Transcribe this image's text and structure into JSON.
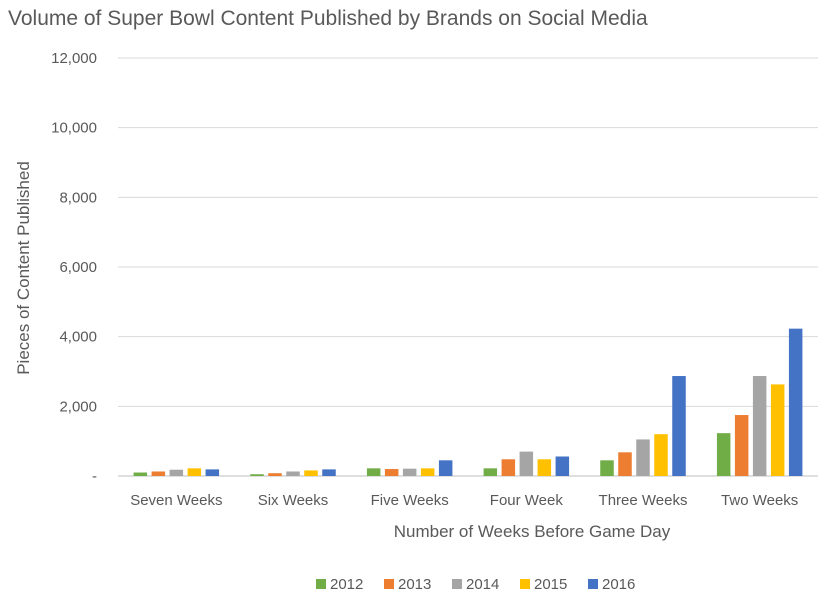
{
  "chart_data": {
    "type": "bar",
    "title": "Volume of Super Bowl Content Published by Brands on Social Media",
    "xlabel": "Number of Weeks Before Game Day",
    "ylabel": "Pieces of Content Published",
    "categories": [
      "Seven Weeks",
      "Six Weeks",
      "Five Weeks",
      "Four Week",
      "Three Weeks",
      "Two Weeks"
    ],
    "ylim": [
      0,
      12000
    ],
    "yticks": [
      0,
      2000,
      4000,
      6000,
      8000,
      10000,
      12000
    ],
    "ytick_labels": [
      "-",
      "2,000",
      "4,000",
      "6,000",
      "8,000",
      "10,000",
      "12,000"
    ],
    "grid": true,
    "legend_position": "bottom",
    "series": [
      {
        "name": "2012",
        "color": "#70AD47",
        "values": [
          100,
          50,
          220,
          220,
          450,
          1230
        ]
      },
      {
        "name": "2013",
        "color": "#ED7D31",
        "values": [
          130,
          80,
          200,
          480,
          680,
          1750
        ]
      },
      {
        "name": "2014",
        "color": "#A5A5A5",
        "values": [
          180,
          130,
          210,
          700,
          1050,
          2870
        ]
      },
      {
        "name": "2015",
        "color": "#FFC000",
        "values": [
          220,
          160,
          220,
          480,
          1200,
          2630
        ]
      },
      {
        "name": "2016",
        "color": "#4472C4",
        "values": [
          190,
          190,
          450,
          560,
          2870,
          4230
        ]
      }
    ]
  }
}
